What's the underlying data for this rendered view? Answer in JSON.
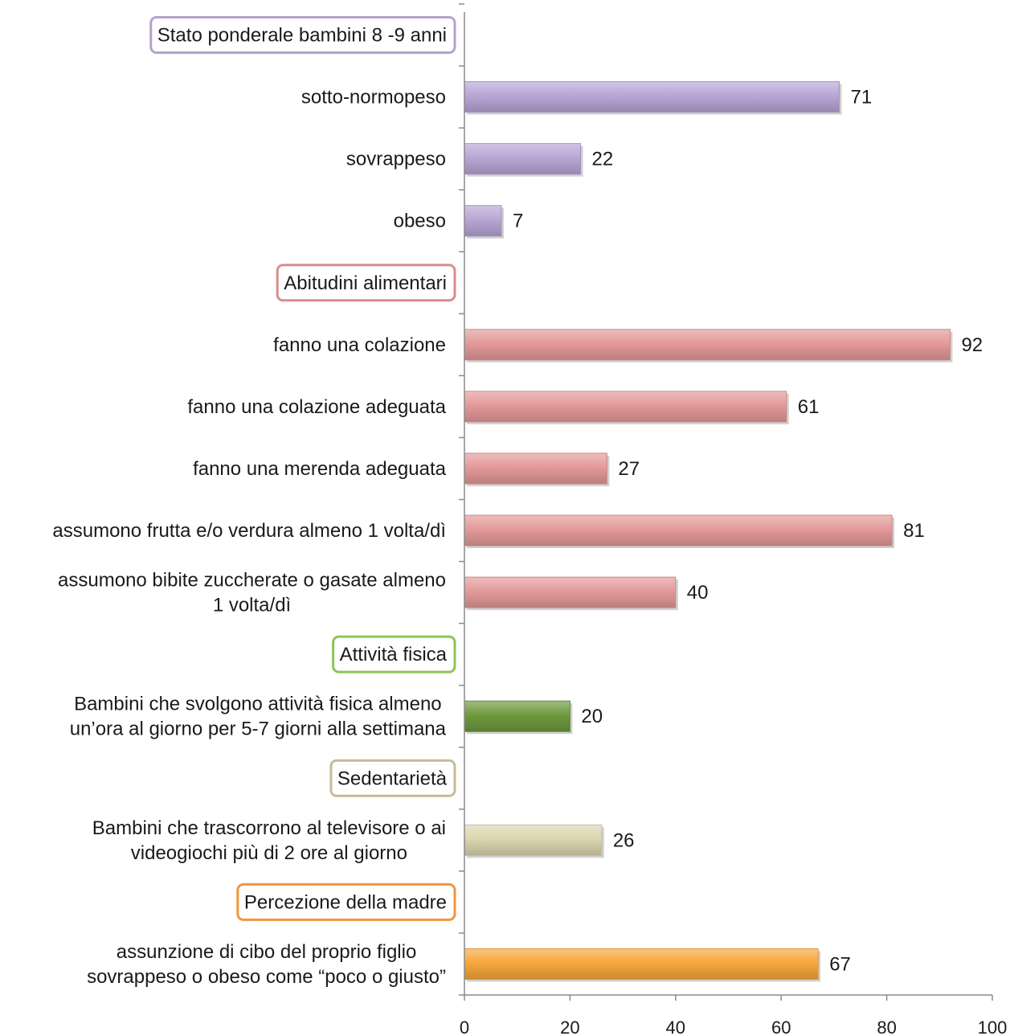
{
  "chart_data": {
    "type": "bar",
    "orientation": "horizontal",
    "xlim": [
      0,
      100
    ],
    "xticks": [
      0,
      20,
      40,
      60,
      80,
      100
    ],
    "grid": false,
    "rows": [
      {
        "kind": "header",
        "text": "Stato ponderale bambini 8 -9 anni",
        "color": "#b4a2cc"
      },
      {
        "kind": "bar",
        "label": [
          "sotto-normopeso"
        ],
        "value": 71,
        "color": "#b9a6d6"
      },
      {
        "kind": "bar",
        "label": [
          "sovrappeso"
        ],
        "value": 22,
        "color": "#b9a6d6"
      },
      {
        "kind": "bar",
        "label": [
          "obeso"
        ],
        "value": 7,
        "color": "#b9a6d6"
      },
      {
        "kind": "header",
        "text": "Abitudini alimentari",
        "color": "#d98c8c"
      },
      {
        "kind": "bar",
        "label": [
          "fanno una colazione"
        ],
        "value": 92,
        "color": "#e49a9a"
      },
      {
        "kind": "bar",
        "label": [
          "fanno una colazione adeguata"
        ],
        "value": 61,
        "color": "#e49a9a"
      },
      {
        "kind": "bar",
        "label": [
          "fanno una merenda adeguata"
        ],
        "value": 27,
        "color": "#e49a9a"
      },
      {
        "kind": "bar",
        "label": [
          "assumono frutta e/o verdura almeno 1 volta/dì"
        ],
        "value": 81,
        "color": "#e49a9a"
      },
      {
        "kind": "bar",
        "label": [
          "assumono bibite zuccherate o gasate almeno",
          "1 volta/dì"
        ],
        "value": 40,
        "color": "#e49a9a"
      },
      {
        "kind": "header",
        "text": "Attività fisica",
        "color": "#8cc45a"
      },
      {
        "kind": "bar",
        "label": [
          "Bambini che svolgono attività fisica almeno",
          "un’ora al giorno per 5-7 giorni alla settimana"
        ],
        "value": 20,
        "color": "#6f9a3e"
      },
      {
        "kind": "header",
        "text": "Sedentarietà",
        "color": "#c4bc98"
      },
      {
        "kind": "bar",
        "label": [
          "Bambini che trascorrono al televisore o ai",
          "videogiochi più di 2 ore al giorno"
        ],
        "value": 26,
        "color": "#dcd6b0"
      },
      {
        "kind": "header",
        "text": "Percezione della madre",
        "color": "#f0963c"
      },
      {
        "kind": "bar",
        "label": [
          "assunzione di cibo del proprio figlio",
          "sovrappeso o obeso come “poco o giusto”"
        ],
        "value": 67,
        "color": "#f8a83c"
      }
    ]
  }
}
